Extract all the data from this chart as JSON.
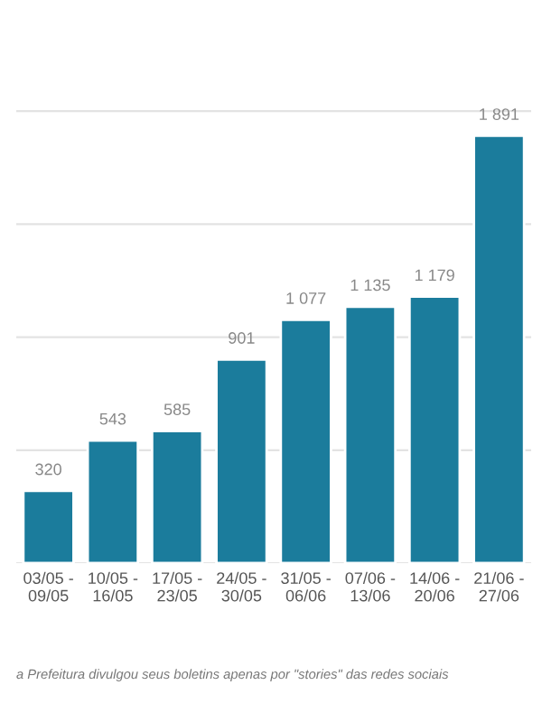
{
  "chart_data": {
    "type": "bar",
    "categories": [
      "03/05 -\n09/05",
      "10/05 -\n16/05",
      "17/05 -\n23/05",
      "24/05 -\n30/05",
      "31/05 -\n06/06",
      "07/06 -\n13/06",
      "14/06 -\n20/06",
      "21/06 -\n27/06"
    ],
    "values": [
      320,
      543,
      585,
      901,
      1077,
      1135,
      1179,
      1891
    ],
    "value_labels": [
      "320",
      "543",
      "585",
      "901",
      "1 077",
      "1 135",
      "1 179",
      "1 891"
    ],
    "color": "#1b7c9c",
    "yticks": [
      {
        "value": 0,
        "label": null
      },
      {
        "value": 500,
        "label": null
      },
      {
        "value": 1000,
        "label": null
      },
      {
        "value": 1500,
        "label": null
      },
      {
        "value": 2000,
        "label": null
      }
    ],
    "tick_labels": "x",
    "grid": "y",
    "annotations": [
      "a Prefeitura divulgou seus boletins apenas por \"stories\" das redes sociais"
    ]
  }
}
